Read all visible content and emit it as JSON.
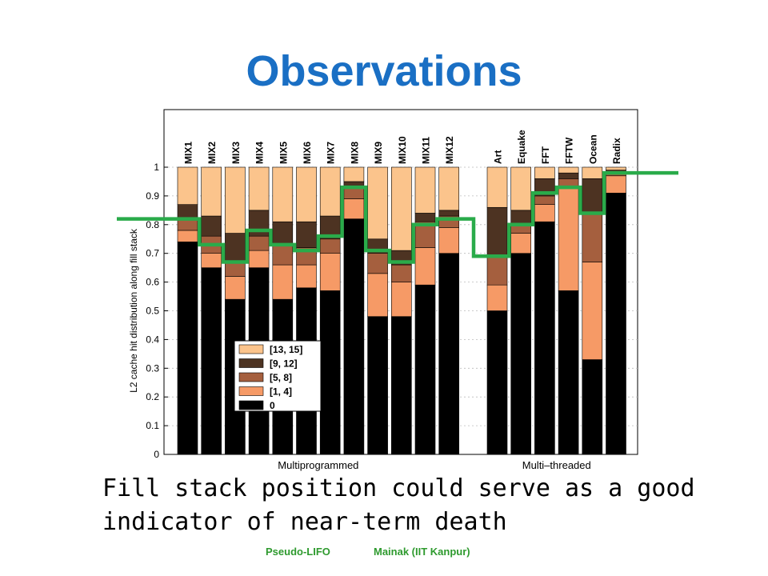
{
  "slide": {
    "title": "Observations",
    "caption_line1": "Fill stack position could serve as a good",
    "caption_line2": "indicator of near-term death",
    "footer_left": "Pseudo-LIFO",
    "footer_right": "Mainak   (IIT Kanpur)"
  },
  "colors": {
    "s13_15": "#fbc48c",
    "s9_12": "#4d3322",
    "s5_8": "#a55f3e",
    "s1_4": "#f69a66",
    "s0": "#000000",
    "step_line": "#2aab4a",
    "title": "#1a6fc4"
  },
  "chart_data": {
    "type": "bar",
    "stacked": true,
    "ylabel": "L2 cache hit distribution along fill stack",
    "ylim": [
      0,
      1
    ],
    "yticks": [
      "0",
      "0.1",
      "0.2",
      "0.3",
      "0.4",
      "0.5",
      "0.6",
      "0.7",
      "0.8",
      "0.9",
      "1"
    ],
    "grid": true,
    "legend_position": "bottom-left",
    "groups": [
      {
        "label": "Multiprogrammed",
        "categories": [
          "MIX1",
          "MIX2",
          "MIX3",
          "MIX4",
          "MIX5",
          "MIX6",
          "MIX7",
          "MIX8",
          "MIX9",
          "MIX10",
          "MIX11",
          "MIX12"
        ]
      },
      {
        "label": "Multi–threaded",
        "categories": [
          "Art",
          "Equake",
          "FFT",
          "FFTW",
          "Ocean",
          "Radix"
        ]
      }
    ],
    "series": [
      {
        "name": "0",
        "color": "#000000",
        "values": [
          0.74,
          0.65,
          0.54,
          0.65,
          0.54,
          0.58,
          0.57,
          0.82,
          0.48,
          0.48,
          0.59,
          0.7,
          0.5,
          0.7,
          0.81,
          0.57,
          0.33,
          0.91
        ]
      },
      {
        "name": "[1, 4]",
        "color": "#f69a66",
        "values": [
          0.04,
          0.05,
          0.08,
          0.06,
          0.12,
          0.08,
          0.13,
          0.07,
          0.15,
          0.12,
          0.13,
          0.09,
          0.09,
          0.07,
          0.06,
          0.36,
          0.34,
          0.06
        ]
      },
      {
        "name": "[5, 8]",
        "color": "#a55f3e",
        "values": [
          0.04,
          0.06,
          0.05,
          0.05,
          0.07,
          0.06,
          0.05,
          0.04,
          0.07,
          0.06,
          0.09,
          0.04,
          0.1,
          0.03,
          0.03,
          0.03,
          0.17,
          0.01
        ]
      },
      {
        "name": "[9, 12]",
        "color": "#4d3322",
        "values": [
          0.05,
          0.07,
          0.1,
          0.09,
          0.08,
          0.09,
          0.08,
          0.02,
          0.05,
          0.05,
          0.03,
          0.02,
          0.17,
          0.05,
          0.06,
          0.02,
          0.12,
          0.01
        ]
      },
      {
        "name": "[13, 15]",
        "color": "#fbc48c",
        "values": [
          0.13,
          0.17,
          0.23,
          0.15,
          0.19,
          0.19,
          0.17,
          0.05,
          0.25,
          0.29,
          0.16,
          0.15,
          0.14,
          0.15,
          0.04,
          0.02,
          0.04,
          0.01
        ]
      }
    ],
    "legend": [
      "[13, 15]",
      "[9, 12]",
      "[5, 8]",
      "[1, 4]",
      "0"
    ],
    "step_line": {
      "color": "#2aab4a",
      "values": [
        0.82,
        0.73,
        0.67,
        0.78,
        0.73,
        0.71,
        0.76,
        0.93,
        0.71,
        0.67,
        0.8,
        0.82,
        0.69,
        0.8,
        0.91,
        0.93,
        0.84,
        0.98
      ]
    }
  }
}
